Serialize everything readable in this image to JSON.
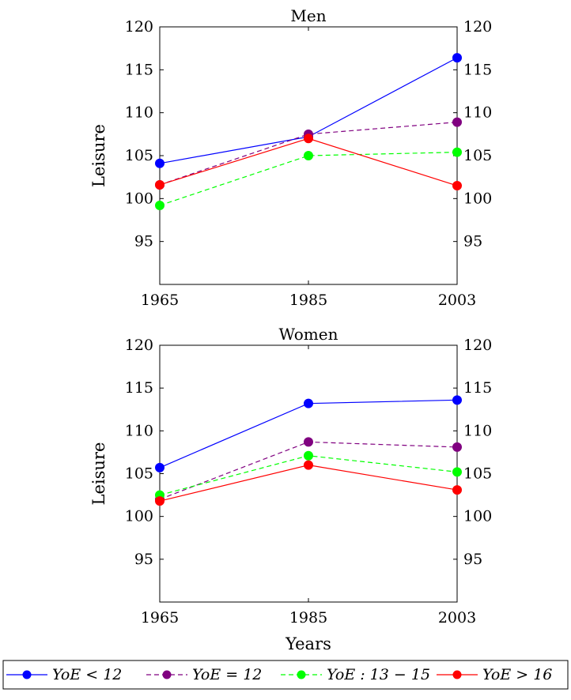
{
  "chart_data": [
    {
      "type": "line",
      "title": "Men",
      "xlabel": "",
      "ylabel": "Leisure",
      "categories": [
        "1965",
        "1985",
        "2003"
      ],
      "ylim": [
        90,
        120
      ],
      "yticks": [
        "95",
        "100",
        "105",
        "110",
        "115",
        "120"
      ],
      "grid": false,
      "series": [
        {
          "name": "YoE < 12",
          "color": "#0000ff",
          "dash": "solid",
          "values": [
            104.1,
            107.2,
            116.4
          ]
        },
        {
          "name": "YoE = 12",
          "color": "#800080",
          "dash": "dashed",
          "values": [
            101.6,
            107.5,
            108.9
          ]
        },
        {
          "name": "YoE : 13 − 15",
          "color": "#00ff00",
          "dash": "dashed",
          "values": [
            99.2,
            105.0,
            105.4
          ]
        },
        {
          "name": "YoE > 16",
          "color": "#ff0000",
          "dash": "solid",
          "values": [
            101.6,
            107.0,
            101.5
          ]
        }
      ]
    },
    {
      "type": "line",
      "title": "Women",
      "xlabel": "Years",
      "ylabel": "Leisure",
      "categories": [
        "1965",
        "1985",
        "2003"
      ],
      "ylim": [
        90,
        120
      ],
      "yticks": [
        "95",
        "100",
        "105",
        "110",
        "115",
        "120"
      ],
      "grid": false,
      "series": [
        {
          "name": "YoE < 12",
          "color": "#0000ff",
          "dash": "solid",
          "values": [
            105.7,
            113.2,
            113.6
          ]
        },
        {
          "name": "YoE = 12",
          "color": "#800080",
          "dash": "dashed",
          "values": [
            102.0,
            108.7,
            108.1
          ]
        },
        {
          "name": "YoE : 13 − 15",
          "color": "#00ff00",
          "dash": "dashed",
          "values": [
            102.5,
            107.1,
            105.2
          ]
        },
        {
          "name": "YoE > 16",
          "color": "#ff0000",
          "dash": "solid",
          "values": [
            101.8,
            106.0,
            103.1
          ]
        }
      ]
    }
  ],
  "legend": {
    "placement": "bottom",
    "entries": [
      {
        "label": "YoE < 12",
        "color": "#0000ff",
        "dash": "solid"
      },
      {
        "label": "YoE = 12",
        "color": "#800080",
        "dash": "dashed"
      },
      {
        "label": "YoE : 13 − 15",
        "color": "#00ff00",
        "dash": "dashed"
      },
      {
        "label": "YoE > 16",
        "color": "#ff0000",
        "dash": "solid"
      }
    ]
  }
}
